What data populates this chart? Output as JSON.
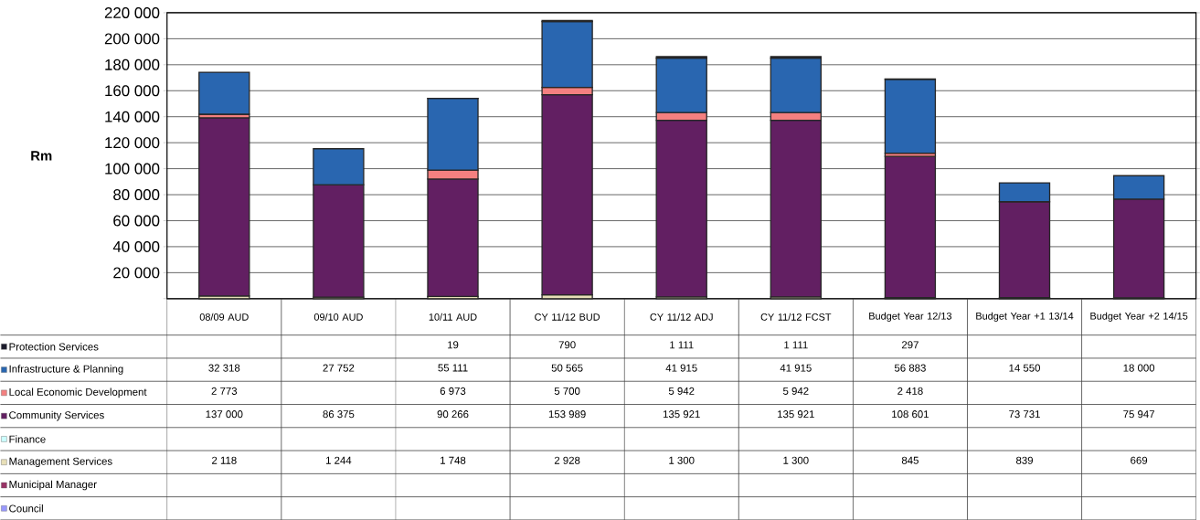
{
  "chart_data": {
    "type": "bar",
    "stacked": true,
    "ylabel": "Rm",
    "categories": [
      "08/09 AUD",
      "09/10 AUD",
      "10/11 AUD",
      "CY 11/12 BUD",
      "CY 11/12 ADJ",
      "CY 11/12 FCST",
      "Budget Year 12/13",
      "Budget Year +1 13/14",
      "Budget Year +2 14/15"
    ],
    "series": [
      {
        "name": "Council",
        "color": "#9999ff",
        "values": [
          null,
          null,
          null,
          null,
          null,
          null,
          null,
          null,
          null
        ],
        "value_labels": [
          null,
          null,
          null,
          null,
          null,
          null,
          null,
          null,
          null
        ]
      },
      {
        "name": "Municipal Manager",
        "color": "#993366",
        "values": [
          null,
          null,
          null,
          null,
          null,
          null,
          null,
          null,
          null
        ],
        "value_labels": [
          null,
          null,
          null,
          null,
          null,
          null,
          null,
          null,
          null
        ]
      },
      {
        "name": "Management Services",
        "color": "#e8e0b8",
        "values": [
          2118,
          1244,
          1748,
          2928,
          1300,
          1300,
          845,
          839,
          669
        ],
        "value_labels": [
          "2 118",
          "1 244",
          "1 748",
          "2 928",
          "1 300",
          "1 300",
          "845",
          "839",
          "669"
        ]
      },
      {
        "name": "Finance",
        "color": "#ccffff",
        "values": [
          null,
          null,
          null,
          null,
          null,
          null,
          null,
          null,
          null
        ],
        "value_labels": [
          null,
          null,
          null,
          null,
          null,
          null,
          null,
          null,
          null
        ]
      },
      {
        "name": "Community Services",
        "color": "#621f62",
        "values": [
          137000,
          86375,
          90266,
          153989,
          135921,
          135921,
          108601,
          73731,
          75947
        ],
        "value_labels": [
          "137 000",
          "86 375",
          "90 266",
          "153 989",
          "135 921",
          "135 921",
          "108 601",
          "73 731",
          "75 947"
        ]
      },
      {
        "name": "Local Economic Development",
        "color": "#f48080",
        "values": [
          2773,
          null,
          6973,
          5700,
          5942,
          5942,
          2418,
          null,
          null
        ],
        "value_labels": [
          "2 773",
          null,
          "6 973",
          "5 700",
          "5 942",
          "5 942",
          "2 418",
          null,
          null
        ]
      },
      {
        "name": "Infrastructure & Planning",
        "color": "#2966b0",
        "values": [
          32318,
          27752,
          55111,
          50565,
          41915,
          41915,
          56883,
          14550,
          18000
        ],
        "value_labels": [
          "32 318",
          "27 752",
          "55 111",
          "50 565",
          "41 915",
          "41 915",
          "56 883",
          "14 550",
          "18 000"
        ]
      },
      {
        "name": "Protection Services",
        "color": "#1c1c2c",
        "values": [
          null,
          null,
          19,
          790,
          1111,
          1111,
          297,
          null,
          null
        ],
        "value_labels": [
          null,
          null,
          "19",
          "790",
          "1 111",
          "1 111",
          "297",
          null,
          null
        ]
      }
    ],
    "ylim": [
      0,
      220000
    ],
    "yticks": [
      {
        "value": 0,
        "label": null
      },
      {
        "value": 20000,
        "label": "20 000"
      },
      {
        "value": 40000,
        "label": "40 000"
      },
      {
        "value": 60000,
        "label": "60 000"
      },
      {
        "value": 80000,
        "label": "80 000"
      },
      {
        "value": 100000,
        "label": "100 000"
      },
      {
        "value": 120000,
        "label": "120 000"
      },
      {
        "value": 140000,
        "label": "140 000"
      },
      {
        "value": 160000,
        "label": "160 000"
      },
      {
        "value": 180000,
        "label": "180 000"
      },
      {
        "value": 200000,
        "label": "200 000"
      },
      {
        "value": 220000,
        "label": "220 000"
      }
    ],
    "grid": "y",
    "legend": "bottom left"
  }
}
